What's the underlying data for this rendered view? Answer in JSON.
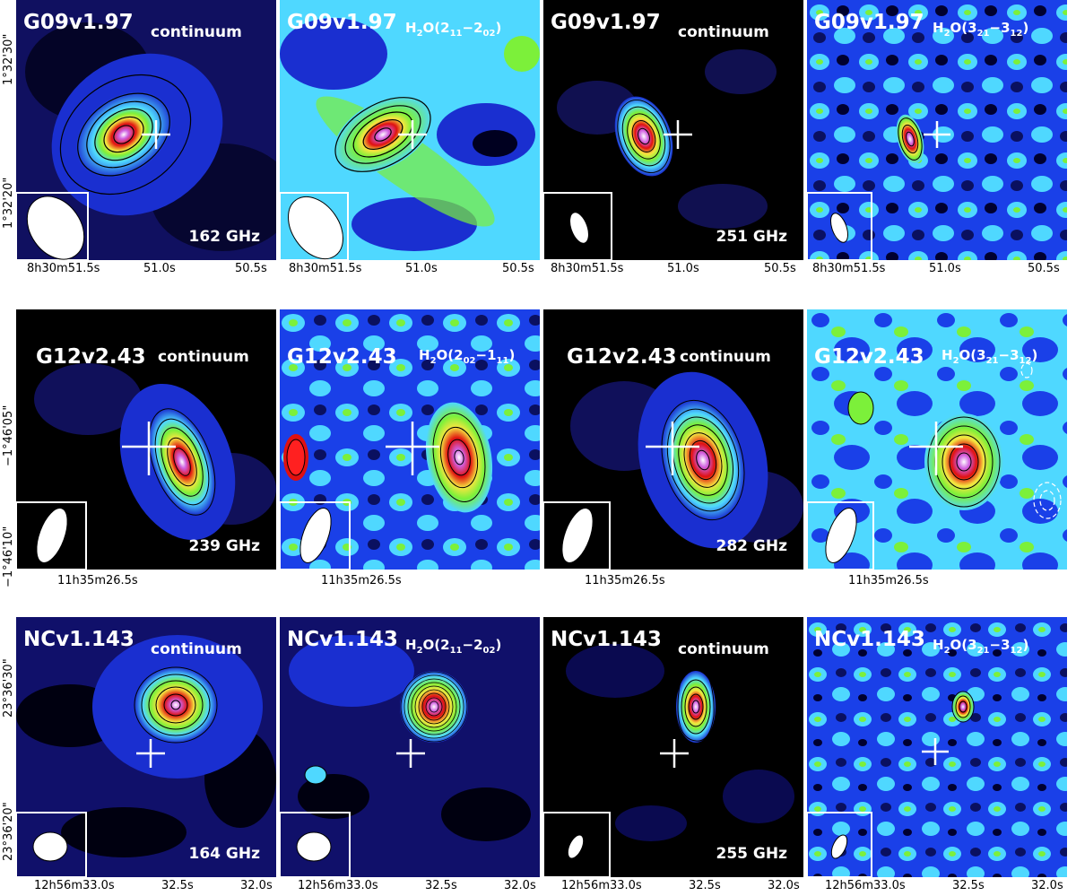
{
  "rows": [
    {
      "panels": [
        {
          "source": "G09v1.97",
          "kind": "continuum",
          "freq": "162 GHz"
        },
        {
          "source": "G09v1.97",
          "line": "H2O(211-202)"
        },
        {
          "source": "G09v1.97",
          "kind": "continuum",
          "freq": "251 GHz"
        },
        {
          "source": "G09v1.97",
          "line": "H2O(321-312)"
        }
      ],
      "ra_ticks": [
        "8h30m51.5s",
        "51.0s",
        "50.5s"
      ],
      "dec_ticks": [
        "1°32'30\"",
        "1°32'20\""
      ]
    },
    {
      "panels": [
        {
          "source": "G12v2.43",
          "kind": "continuum",
          "freq": "239 GHz"
        },
        {
          "source": "G12v2.43",
          "line": "H2O(202-111)"
        },
        {
          "source": "G12v2.43",
          "kind": "continuum",
          "freq": "282 GHz"
        },
        {
          "source": "G12v2.43",
          "line": "H2O(321-312)"
        }
      ],
      "ra_ticks": [
        "11h35m26.5s"
      ],
      "dec_ticks": [
        "−1°46'05\"",
        "−1°46'10\""
      ]
    },
    {
      "panels": [
        {
          "source": "NCv1.143",
          "kind": "continuum",
          "freq": "164 GHz"
        },
        {
          "source": "NCv1.143",
          "line": "H2O(211-202)"
        },
        {
          "source": "NCv1.143",
          "kind": "continuum",
          "freq": "255 GHz"
        },
        {
          "source": "NCv1.143",
          "line": "H2O(321-312)"
        }
      ],
      "ra_ticks": [
        "12h56m33.0s",
        "32.5s",
        "32.0s"
      ],
      "dec_ticks": [
        "23°36'30\"",
        "23°36'20\""
      ]
    }
  ],
  "colors": {
    "background_low": "#000000",
    "noise_blue": "#1a2fd0",
    "mid_cyan": "#4fd8ff",
    "green": "#7cf03a",
    "yellow": "#f5e640",
    "red": "#e01010",
    "magenta": "#d060e0",
    "peak": "#ffffff",
    "cross": "#ffffff",
    "beam_box": "#ffffff"
  }
}
